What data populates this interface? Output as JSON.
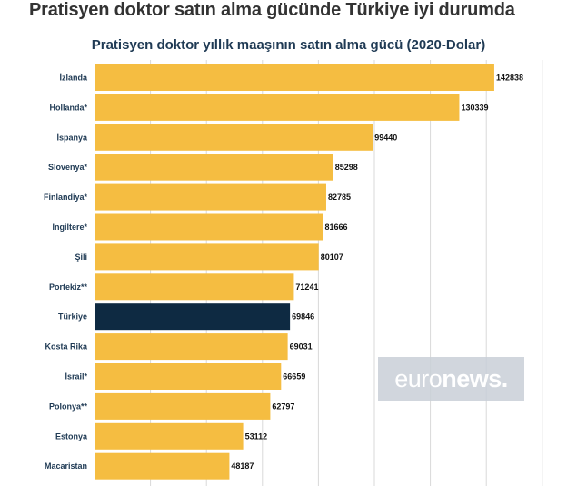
{
  "headline": "Pratisyen doktor satın alma gücünde Türkiye iyi durumda",
  "watermark": {
    "part1": "euro",
    "part2": "news."
  },
  "colors": {
    "bar": "#f5bd41",
    "highlight": "#0e2a42",
    "grid": "#d9d9d9"
  },
  "chart_data": {
    "type": "bar",
    "orientation": "horizontal",
    "title": "Pratisyen doktor yıllık maaşının satın alma gücü (2020-Dolar)",
    "xlabel": "",
    "ylabel": "",
    "xlim": [
      0,
      150000
    ],
    "grid": true,
    "highlight": "Türkiye",
    "categories": [
      "İzlanda",
      "Hollanda*",
      "İspanya",
      "Slovenya*",
      "Finlandiya*",
      "İngiltere*",
      "Şili",
      "Portekiz**",
      "Türkiye",
      "Kosta Rika",
      "İsrail*",
      "Polonya**",
      "Estonya",
      "Macaristan"
    ],
    "values": [
      142838,
      130339,
      99440,
      85298,
      82785,
      81666,
      80107,
      71241,
      69846,
      69031,
      66659,
      62797,
      53112,
      48187
    ],
    "value_labels": [
      "142838",
      "130339",
      "99440",
      "85298",
      "82785",
      "81666",
      "80107",
      "71241",
      "69846",
      "69031",
      "66659",
      "62797",
      "53112",
      "48187"
    ]
  }
}
